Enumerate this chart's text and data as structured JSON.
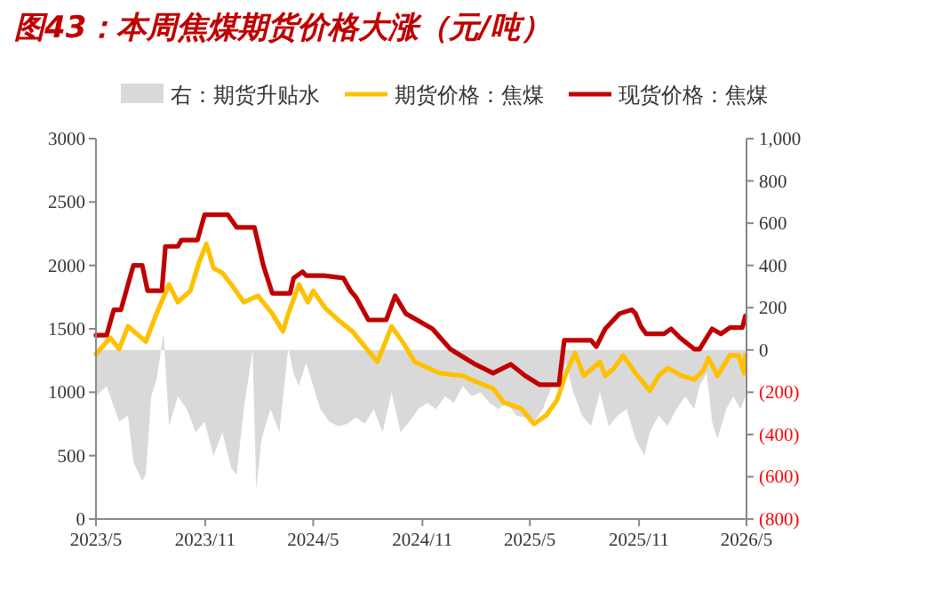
{
  "chart_data": {
    "type": "line",
    "title": "图43：本周焦煤期货价格大涨（元/吨）",
    "xlim": [
      "2023-05-01",
      "2026-05-01"
    ],
    "xticks": [
      {
        "value": "2023-05-01",
        "label": "2023/5"
      },
      {
        "value": "2023-11-01",
        "label": "2023/11"
      },
      {
        "value": "2024-05-01",
        "label": "2024/5"
      },
      {
        "value": "2024-11-01",
        "label": "2024/11"
      },
      {
        "value": "2025-05-01",
        "label": "2025/5"
      },
      {
        "value": "2025-11-01",
        "label": "2025/11"
      },
      {
        "value": "2026-05-01",
        "label": "2026/5"
      }
    ],
    "ylim": [
      0,
      3000
    ],
    "yticks": [
      0,
      500,
      1000,
      1500,
      2000,
      2500,
      3000
    ],
    "y2lim": [
      -800,
      1000
    ],
    "y2ticks": [
      {
        "value": -800,
        "label": "(800)"
      },
      {
        "value": -600,
        "label": "(600)"
      },
      {
        "value": -400,
        "label": "(400)"
      },
      {
        "value": -200,
        "label": "(200)"
      },
      0,
      200,
      400,
      600,
      800,
      {
        "value": 1000,
        "label": "1,000"
      }
    ],
    "legend": "top",
    "grid": false,
    "series": [
      {
        "name": "右：期货升贴水",
        "type": "area",
        "axis": "y2",
        "color": "#d9d9d9",
        "x": [
          "2023-05-01",
          "2023-05-19",
          "2023-06-09",
          "2023-06-24",
          "2023-07-03",
          "2023-07-18",
          "2023-07-24",
          "2023-08-02",
          "2023-08-11",
          "2023-08-23",
          "2023-09-01",
          "2023-09-16",
          "2023-10-01",
          "2023-10-16",
          "2023-10-31",
          "2023-11-15",
          "2023-11-30",
          "2023-12-15",
          "2023-12-24",
          "2024-01-05",
          "2024-01-20",
          "2024-01-26",
          "2024-02-04",
          "2024-02-19",
          "2024-03-05",
          "2024-03-20",
          "2024-03-29",
          "2024-04-07",
          "2024-04-19",
          "2024-05-01",
          "2024-05-13",
          "2024-05-28",
          "2024-06-12",
          "2024-06-27",
          "2024-07-12",
          "2024-07-27",
          "2024-08-11",
          "2024-08-26",
          "2024-09-10",
          "2024-09-25",
          "2024-10-10",
          "2024-10-25",
          "2024-11-09",
          "2024-11-24",
          "2024-12-09",
          "2024-12-24",
          "2025-01-08",
          "2025-01-23",
          "2025-02-07",
          "2025-02-22",
          "2025-03-09",
          "2025-03-24",
          "2025-04-08",
          "2025-04-23",
          "2025-05-08",
          "2025-05-23",
          "2025-06-07",
          "2025-06-22",
          "2025-07-01",
          "2025-07-13",
          "2025-07-28",
          "2025-08-12",
          "2025-08-27",
          "2025-09-11",
          "2025-09-26",
          "2025-10-11",
          "2025-10-26",
          "2025-11-10",
          "2025-11-19",
          "2025-12-04",
          "2025-12-19",
          "2026-01-03",
          "2026-01-18",
          "2026-02-02",
          "2026-02-11",
          "2026-02-23",
          "2026-03-04",
          "2026-03-13",
          "2026-03-28",
          "2026-04-09",
          "2026-04-21",
          "2026-04-29"
        ],
        "values": [
          -220,
          -170,
          -340,
          -310,
          -530,
          -620,
          -590,
          -220,
          -140,
          80,
          -360,
          -220,
          -280,
          -390,
          -340,
          -500,
          -390,
          -560,
          -590,
          -280,
          0,
          -660,
          -420,
          -280,
          -390,
          10,
          -110,
          -170,
          -60,
          -170,
          -280,
          -340,
          -360,
          -350,
          -320,
          -350,
          -280,
          -390,
          -200,
          -390,
          -340,
          -280,
          -250,
          -280,
          -220,
          -250,
          -170,
          -220,
          -200,
          -250,
          -280,
          -250,
          -310,
          -320,
          -340,
          -280,
          -170,
          -130,
          -60,
          -200,
          -310,
          -360,
          -200,
          -360,
          -310,
          -280,
          -420,
          -500,
          -390,
          -310,
          -360,
          -280,
          -220,
          -280,
          -170,
          -110,
          -340,
          -420,
          -280,
          -220,
          -280,
          -220
        ]
      },
      {
        "name": "期货价格：焦煤",
        "color": "#ffc000",
        "x": [
          "2023-05-01",
          "2023-05-25",
          "2023-06-09",
          "2023-06-24",
          "2023-07-24",
          "2023-08-11",
          "2023-09-01",
          "2023-09-16",
          "2023-10-07",
          "2023-10-22",
          "2023-11-03",
          "2023-11-15",
          "2023-11-30",
          "2023-12-15",
          "2024-01-05",
          "2024-01-29",
          "2024-02-22",
          "2024-03-11",
          "2024-03-20",
          "2024-04-07",
          "2024-04-22",
          "2024-05-01",
          "2024-05-22",
          "2024-06-12",
          "2024-07-06",
          "2024-07-27",
          "2024-08-17",
          "2024-08-26",
          "2024-09-10",
          "2024-10-01",
          "2024-10-19",
          "2024-11-30",
          "2025-01-08",
          "2025-02-01",
          "2025-02-28",
          "2025-03-18",
          "2025-04-17",
          "2025-05-08",
          "2025-05-29",
          "2025-06-16",
          "2025-07-01",
          "2025-07-16",
          "2025-07-31",
          "2025-08-27",
          "2025-09-05",
          "2025-09-20",
          "2025-10-05",
          "2025-10-26",
          "2025-11-04",
          "2025-11-19",
          "2025-12-04",
          "2025-12-19",
          "2026-01-12",
          "2026-02-02",
          "2026-02-17",
          "2026-02-26",
          "2026-03-13",
          "2026-04-03",
          "2026-04-18",
          "2026-04-27",
          "2026-04-29"
        ],
        "values": [
          1300,
          1430,
          1340,
          1520,
          1400,
          1620,
          1850,
          1710,
          1800,
          2030,
          2170,
          1980,
          1940,
          1850,
          1710,
          1760,
          1620,
          1480,
          1620,
          1850,
          1710,
          1800,
          1660,
          1570,
          1480,
          1360,
          1240,
          1340,
          1520,
          1380,
          1240,
          1150,
          1130,
          1080,
          1030,
          920,
          870,
          750,
          820,
          940,
          1150,
          1310,
          1130,
          1240,
          1130,
          1190,
          1290,
          1150,
          1100,
          1010,
          1130,
          1190,
          1130,
          1100,
          1170,
          1270,
          1130,
          1290,
          1290,
          1150,
          1290
        ]
      },
      {
        "name": "现货价格：焦煤",
        "color": "#c00000",
        "x": [
          "2023-05-01",
          "2023-05-19",
          "2023-05-25",
          "2023-05-31",
          "2023-06-12",
          "2023-06-21",
          "2023-07-03",
          "2023-07-18",
          "2023-07-27",
          "2023-08-20",
          "2023-08-26",
          "2023-09-16",
          "2023-09-22",
          "2023-10-19",
          "2023-10-25",
          "2023-10-31",
          "2023-11-21",
          "2023-12-09",
          "2023-12-24",
          "2024-01-23",
          "2024-02-07",
          "2024-02-22",
          "2024-03-23",
          "2024-03-29",
          "2024-04-13",
          "2024-04-19",
          "2024-05-19",
          "2024-06-21",
          "2024-07-03",
          "2024-07-12",
          "2024-08-02",
          "2024-09-01",
          "2024-09-16",
          "2024-10-04",
          "2024-11-18",
          "2024-12-18",
          "2025-01-29",
          "2025-02-28",
          "2025-03-30",
          "2025-04-23",
          "2025-05-17",
          "2025-06-19",
          "2025-06-28",
          "2025-08-12",
          "2025-08-21",
          "2025-09-05",
          "2025-09-29",
          "2025-10-20",
          "2025-10-26",
          "2025-11-04",
          "2025-11-13",
          "2025-12-13",
          "2025-12-25",
          "2026-01-09",
          "2026-02-02",
          "2026-02-11",
          "2026-03-04",
          "2026-03-19",
          "2026-04-03",
          "2026-04-24",
          "2026-04-29"
        ],
        "values": [
          1450,
          1450,
          1550,
          1650,
          1650,
          1800,
          2000,
          2000,
          1800,
          1800,
          2150,
          2150,
          2200,
          2200,
          2300,
          2400,
          2400,
          2400,
          2300,
          2300,
          2000,
          1780,
          1780,
          1900,
          1950,
          1920,
          1920,
          1900,
          1800,
          1750,
          1570,
          1570,
          1760,
          1620,
          1500,
          1340,
          1220,
          1150,
          1220,
          1130,
          1060,
          1060,
          1410,
          1410,
          1360,
          1500,
          1620,
          1650,
          1620,
          1520,
          1460,
          1460,
          1500,
          1430,
          1340,
          1340,
          1500,
          1460,
          1510,
          1510,
          1600
        ]
      }
    ]
  }
}
